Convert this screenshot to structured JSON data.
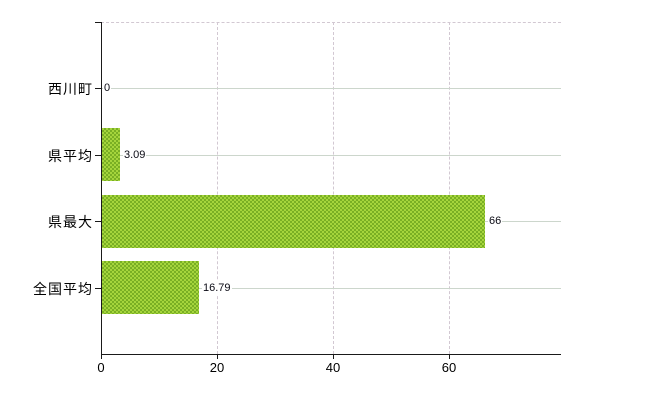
{
  "chart_data": {
    "type": "bar",
    "orientation": "horizontal",
    "title": "",
    "xlabel": "",
    "ylabel": "",
    "categories": [
      "西川町",
      "県平均",
      "県最大",
      "全国平均"
    ],
    "values": [
      0,
      3.09,
      66,
      16.79
    ],
    "value_labels": [
      "0",
      "3.09",
      "66",
      "16.79"
    ],
    "x_ticks": [
      0,
      20,
      40,
      60
    ],
    "x_tick_labels": [
      "0",
      "20",
      "40",
      "60"
    ],
    "xlim": [
      0,
      79.3
    ],
    "grid": true,
    "legend": false,
    "gridline_style": {
      "horizontal": "solid",
      "vertical": "dashed",
      "plot_top_border": "dashed"
    },
    "colors": {
      "bar_base": "#a5d53c",
      "bar_dot": "#79af24",
      "axis": "#1a1a1a",
      "grid_h": "#ccd6cc",
      "grid_v": "#d2c8d2",
      "text": "#000000",
      "background": "#ffffff"
    }
  }
}
